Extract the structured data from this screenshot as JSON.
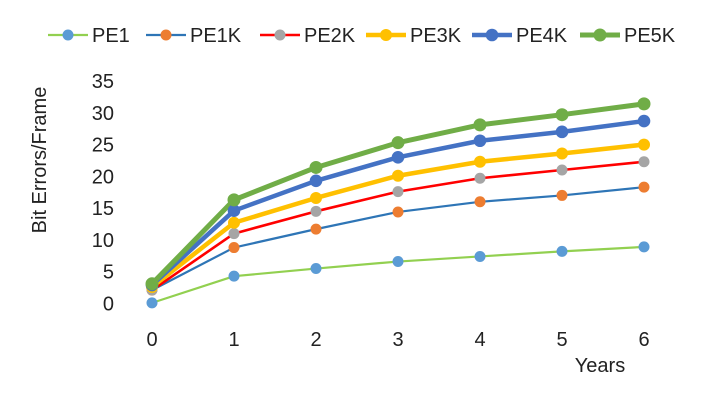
{
  "chart_data": {
    "type": "line",
    "title": "",
    "xlabel": "Years",
    "ylabel": "Bit Errors/Frame",
    "x": [
      0,
      1,
      2,
      3,
      4,
      5,
      6
    ],
    "x_tick_labels": [
      "0",
      "1",
      "2",
      "3",
      "4",
      "5",
      "6"
    ],
    "y_tick_labels": [
      "0",
      "5",
      "10",
      "15",
      "20",
      "25",
      "30",
      "35"
    ],
    "ylim": [
      0,
      35
    ],
    "y_ticks": [
      0,
      5,
      10,
      15,
      20,
      25,
      30,
      35
    ],
    "grid": false,
    "legend_position": "top",
    "series": [
      {
        "name": "PE1",
        "line_color": "#92d050",
        "marker_color": "#5b9bd5",
        "values": [
          0.1,
          4.3,
          5.5,
          6.6,
          7.4,
          8.2,
          8.9
        ]
      },
      {
        "name": "PE1K",
        "line_color": "#2e75b6",
        "marker_color": "#ed7d31",
        "values": [
          2.1,
          8.8,
          11.7,
          14.4,
          16.0,
          17.0,
          18.3
        ]
      },
      {
        "name": "PE2K",
        "line_color": "#ff0000",
        "marker_color": "#a5a5a5",
        "values": [
          2.1,
          11.0,
          14.5,
          17.6,
          19.7,
          21.0,
          22.3
        ]
      },
      {
        "name": "PE3K",
        "line_color": "#ffc000",
        "marker_color": "#ffc000",
        "values": [
          2.6,
          12.7,
          16.6,
          20.1,
          22.3,
          23.6,
          25.0
        ]
      },
      {
        "name": "PE4K",
        "line_color": "#4472c4",
        "marker_color": "#4472c4",
        "values": [
          2.9,
          14.6,
          19.3,
          23.0,
          25.6,
          27.0,
          28.7
        ]
      },
      {
        "name": "PE5K",
        "line_color": "#70ad47",
        "marker_color": "#70ad47",
        "values": [
          3.1,
          16.3,
          21.4,
          25.3,
          28.1,
          29.7,
          31.4
        ]
      }
    ]
  }
}
